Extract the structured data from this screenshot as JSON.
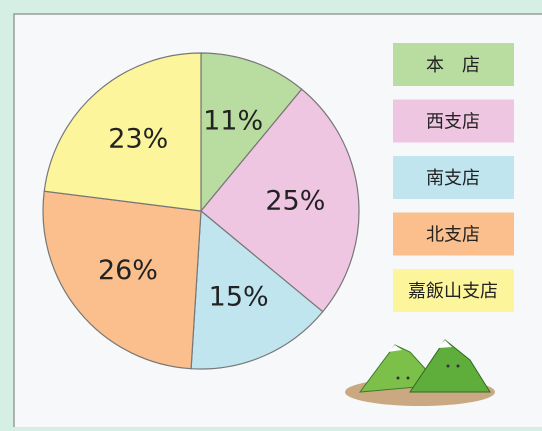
{
  "chart_data": {
    "type": "pie",
    "categories": [
      "本　店",
      "西支店",
      "南支店",
      "北支店",
      "嘉飯山支店"
    ],
    "values": [
      11,
      25,
      15,
      26,
      23
    ],
    "value_labels": [
      "11%",
      "25%",
      "15%",
      "26%",
      "23%"
    ],
    "colors": [
      "#b9dca0",
      "#efc6e1",
      "#c0e5ef",
      "#fbbf8e",
      "#fcf59c"
    ],
    "legend": "right"
  }
}
